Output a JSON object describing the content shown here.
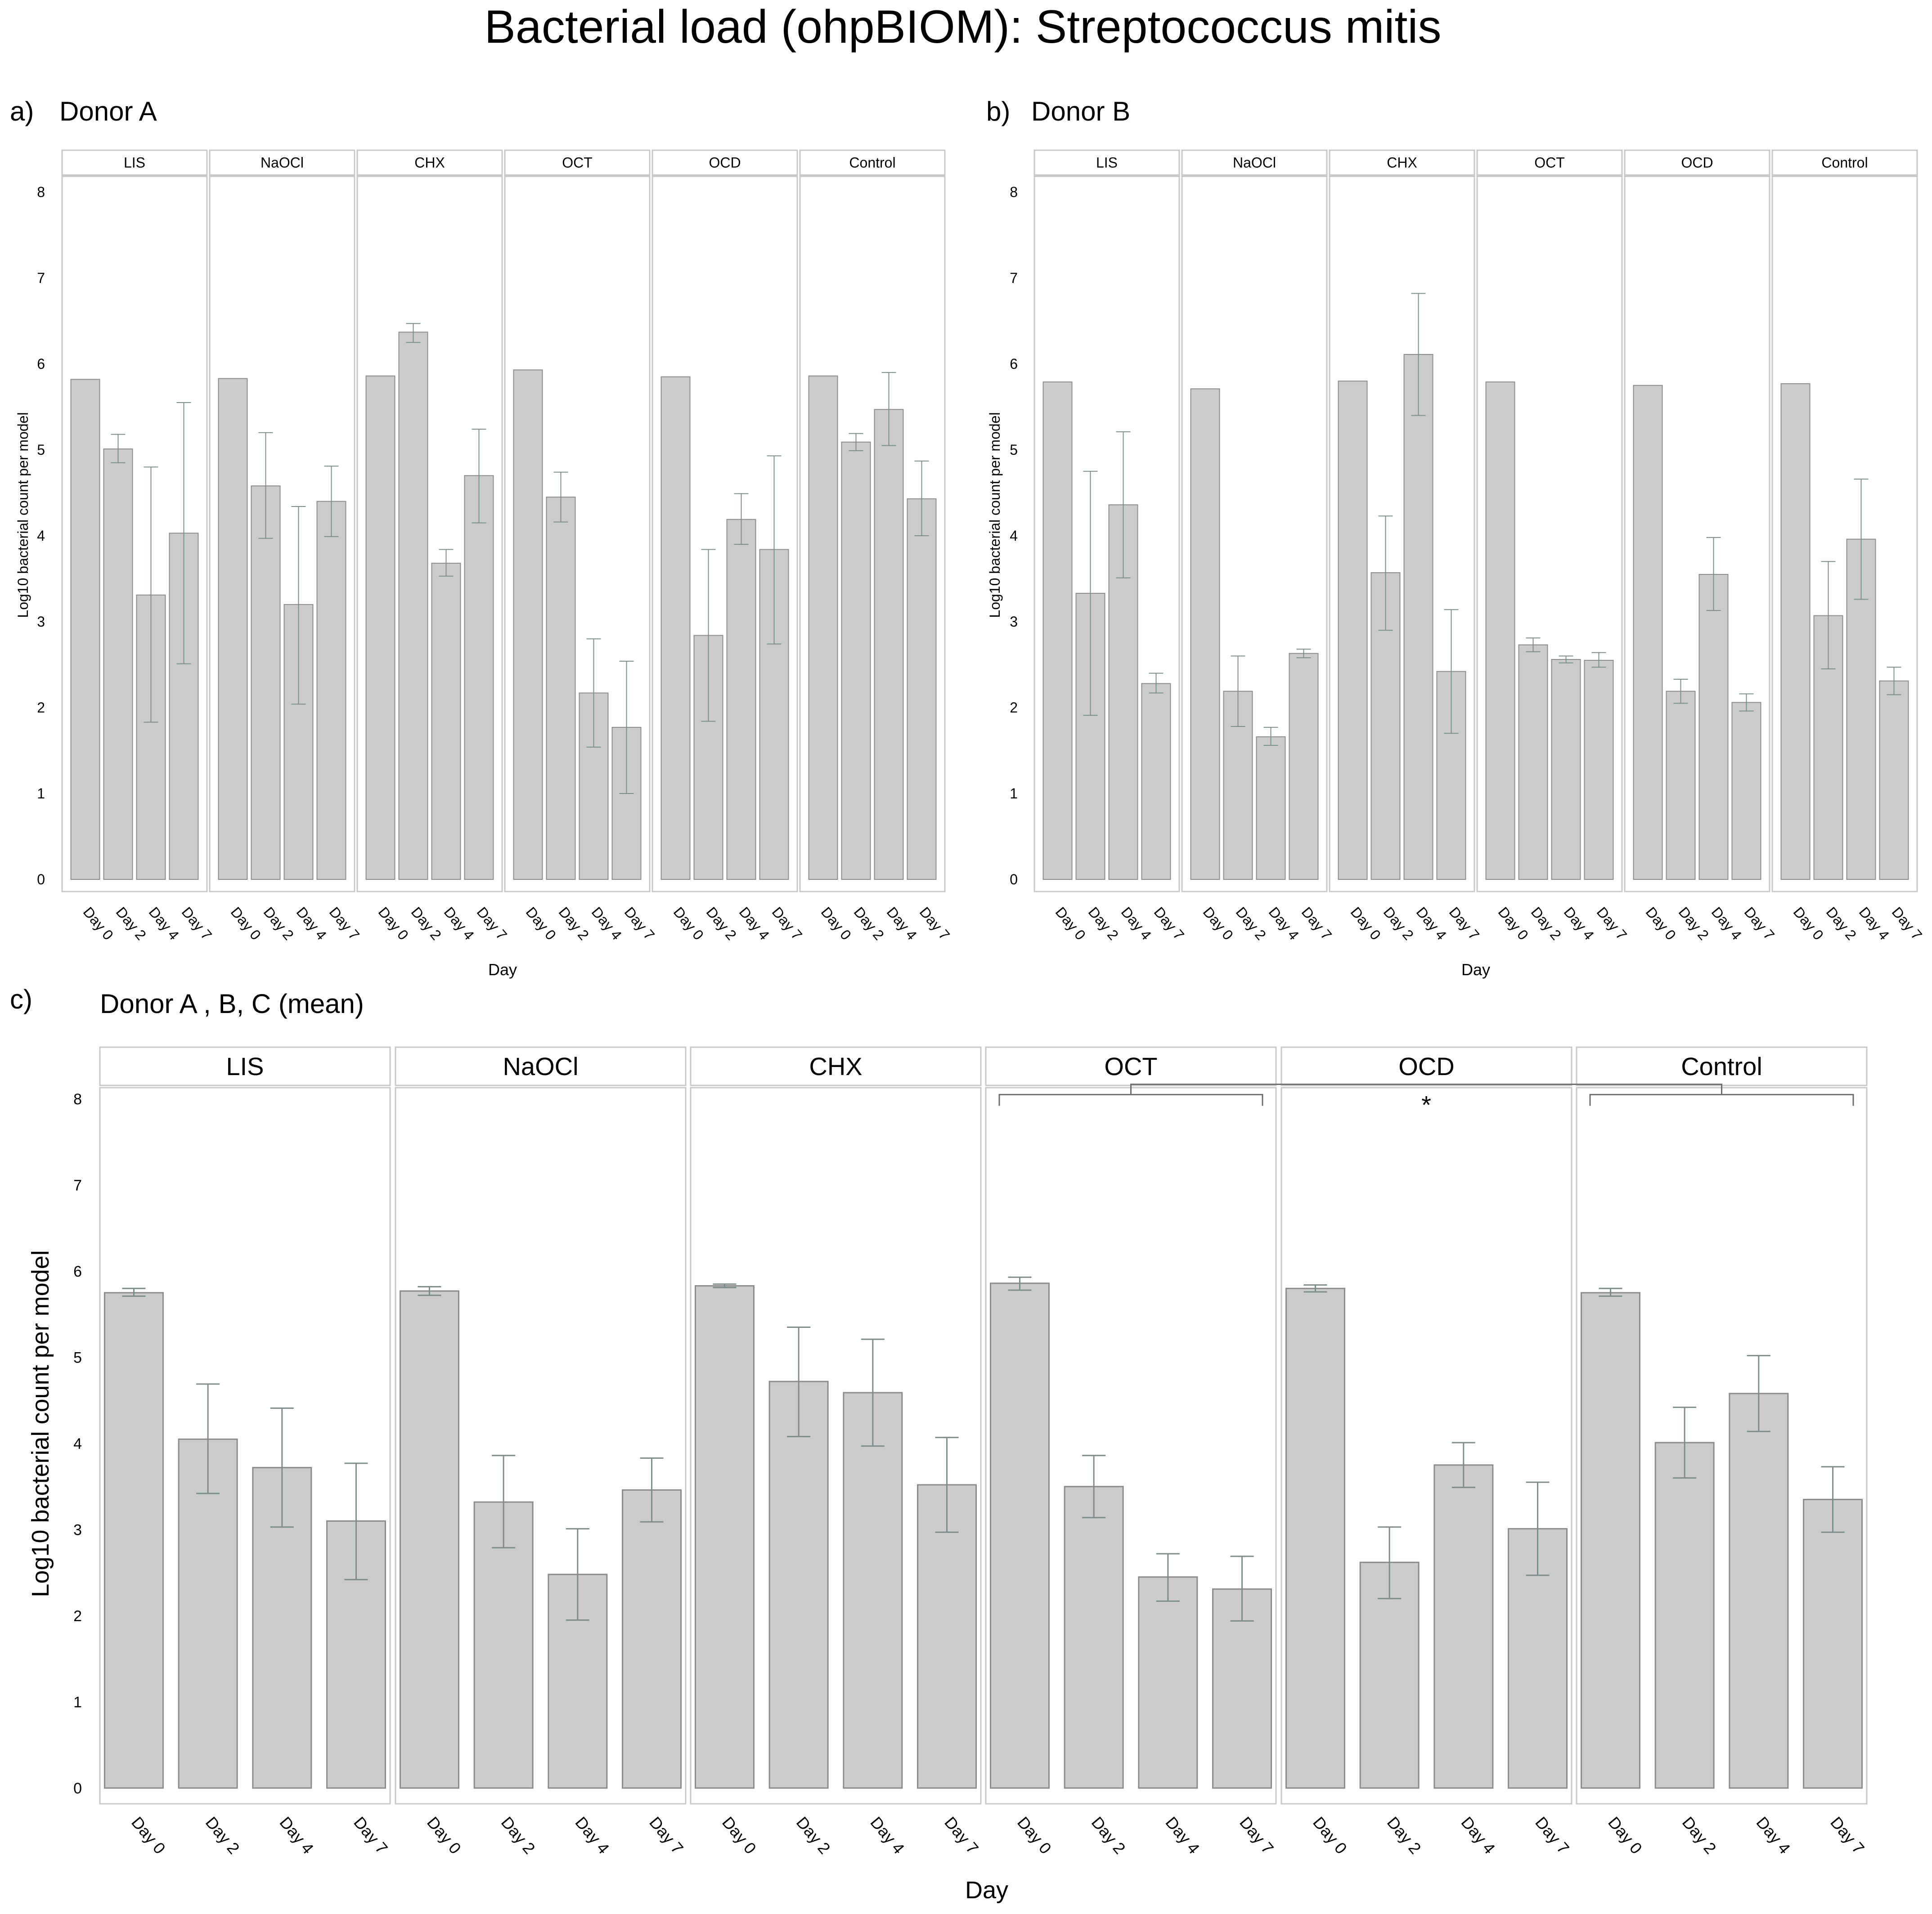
{
  "title": "Bacterial load (ohpBIOM): Streptococcus mitis",
  "colors": {
    "bar_fill": "#cccccc",
    "bar_stroke": "#8c8c8c",
    "frame": "#c8c8c8",
    "error_bar": "#7f8c8c",
    "bracket": "#6e6e6e",
    "background": "#ffffff"
  },
  "chart_data": [
    {
      "type": "bar",
      "panel_letter": "a)",
      "subtitle": "Donor A",
      "xlabel": "Day",
      "ylabel": "Log10 bacterial count per model",
      "ylim": [
        0,
        8.2
      ],
      "yticks": [
        "0",
        "1",
        "2",
        "3",
        "4",
        "5",
        "6",
        "7",
        "8"
      ],
      "categories": [
        "Day 0",
        "Day 2",
        "Day 4",
        "Day 7"
      ],
      "groups": [
        {
          "name": "LIS",
          "values": [
            5.82,
            5.01,
            3.31,
            4.03
          ],
          "err_low": [
            null,
            4.85,
            1.83,
            2.51
          ],
          "err_high": [
            null,
            5.18,
            4.8,
            5.55
          ]
        },
        {
          "name": "NaOCl",
          "values": [
            5.83,
            4.58,
            3.2,
            4.4
          ],
          "err_low": [
            null,
            3.97,
            2.04,
            3.99
          ],
          "err_high": [
            null,
            5.2,
            4.34,
            4.81
          ]
        },
        {
          "name": "CHX",
          "values": [
            5.86,
            6.37,
            3.68,
            4.7
          ],
          "err_low": [
            null,
            6.25,
            3.53,
            4.15
          ],
          "err_high": [
            null,
            6.47,
            3.84,
            5.24
          ]
        },
        {
          "name": "OCT",
          "values": [
            5.93,
            4.45,
            2.17,
            1.77
          ],
          "err_low": [
            null,
            4.16,
            1.54,
            1.0
          ],
          "err_high": [
            null,
            4.74,
            2.8,
            2.54
          ]
        },
        {
          "name": "OCD",
          "values": [
            5.85,
            2.84,
            4.19,
            3.84
          ],
          "err_low": [
            null,
            1.84,
            3.9,
            2.74
          ],
          "err_high": [
            null,
            3.84,
            4.49,
            4.93
          ]
        },
        {
          "name": "Control",
          "values": [
            5.86,
            5.09,
            5.47,
            4.43
          ],
          "err_low": [
            null,
            4.99,
            5.05,
            4.0
          ],
          "err_high": [
            null,
            5.19,
            5.9,
            4.87
          ]
        }
      ]
    },
    {
      "type": "bar",
      "panel_letter": "b)",
      "subtitle": "Donor B",
      "xlabel": "Day",
      "ylabel": "Log10 bacterial count per model",
      "ylim": [
        0,
        8.2
      ],
      "yticks": [
        "0",
        "1",
        "2",
        "3",
        "4",
        "5",
        "6",
        "7",
        "8"
      ],
      "categories": [
        "Day 0",
        "Day 2",
        "Day 4",
        "Day 7"
      ],
      "groups": [
        {
          "name": "LIS",
          "values": [
            5.79,
            3.33,
            4.36,
            2.28
          ],
          "err_low": [
            null,
            1.91,
            3.51,
            2.17
          ],
          "err_high": [
            null,
            4.75,
            5.21,
            2.4
          ]
        },
        {
          "name": "NaOCl",
          "values": [
            5.71,
            2.19,
            1.66,
            2.63
          ],
          "err_low": [
            null,
            1.78,
            1.56,
            2.58
          ],
          "err_high": [
            null,
            2.6,
            1.77,
            2.68
          ]
        },
        {
          "name": "CHX",
          "values": [
            5.8,
            3.57,
            6.11,
            2.42
          ],
          "err_low": [
            null,
            2.9,
            5.4,
            1.7
          ],
          "err_high": [
            null,
            4.23,
            6.82,
            3.14
          ]
        },
        {
          "name": "OCT",
          "values": [
            5.79,
            2.73,
            2.56,
            2.55
          ],
          "err_low": [
            null,
            2.65,
            2.52,
            2.47
          ],
          "err_high": [
            null,
            2.81,
            2.6,
            2.64
          ]
        },
        {
          "name": "OCD",
          "values": [
            5.75,
            2.19,
            3.55,
            2.06
          ],
          "err_low": [
            null,
            2.05,
            3.13,
            1.96
          ],
          "err_high": [
            null,
            2.33,
            3.98,
            2.16
          ]
        },
        {
          "name": "Control",
          "values": [
            5.77,
            3.07,
            3.96,
            2.31
          ],
          "err_low": [
            null,
            2.45,
            3.26,
            2.15
          ],
          "err_high": [
            null,
            3.7,
            4.66,
            2.47
          ]
        }
      ]
    },
    {
      "type": "bar",
      "panel_letter": "c)",
      "subtitle": "Donor A , B, C (mean)",
      "xlabel": "Day",
      "ylabel": "Log10 bacterial count per model",
      "ylim": [
        0,
        8.2
      ],
      "yticks": [
        "0",
        "1",
        "2",
        "3",
        "4",
        "5",
        "6",
        "7",
        "8"
      ],
      "categories": [
        "Day 0",
        "Day 2",
        "Day 4",
        "Day 7"
      ],
      "groups": [
        {
          "name": "LIS",
          "values": [
            5.75,
            4.05,
            3.72,
            3.1
          ],
          "err_low": [
            5.71,
            3.42,
            3.03,
            2.42
          ],
          "err_high": [
            5.8,
            4.69,
            4.41,
            3.77
          ]
        },
        {
          "name": "NaOCl",
          "values": [
            5.77,
            3.32,
            2.48,
            3.46
          ],
          "err_low": [
            5.72,
            2.79,
            1.95,
            3.09
          ],
          "err_high": [
            5.82,
            3.86,
            3.01,
            3.83
          ]
        },
        {
          "name": "CHX",
          "values": [
            5.83,
            4.72,
            4.59,
            3.52
          ],
          "err_low": [
            5.81,
            4.08,
            3.97,
            2.97
          ],
          "err_high": [
            5.85,
            5.35,
            5.21,
            4.07
          ]
        },
        {
          "name": "OCT",
          "values": [
            5.86,
            3.5,
            2.45,
            2.31
          ],
          "err_low": [
            5.78,
            3.14,
            2.17,
            1.94
          ],
          "err_high": [
            5.93,
            3.86,
            2.72,
            2.69
          ]
        },
        {
          "name": "OCD",
          "values": [
            5.8,
            2.62,
            3.75,
            3.01
          ],
          "err_low": [
            5.76,
            2.2,
            3.49,
            2.47
          ],
          "err_high": [
            5.84,
            3.03,
            4.01,
            3.55
          ]
        },
        {
          "name": "Control",
          "values": [
            5.75,
            4.01,
            4.58,
            3.35
          ],
          "err_low": [
            5.71,
            3.6,
            4.14,
            2.97
          ],
          "err_high": [
            5.8,
            4.42,
            5.02,
            3.73
          ]
        }
      ],
      "annotation": {
        "text": "*",
        "between": [
          "OCT",
          "Control"
        ]
      }
    }
  ]
}
